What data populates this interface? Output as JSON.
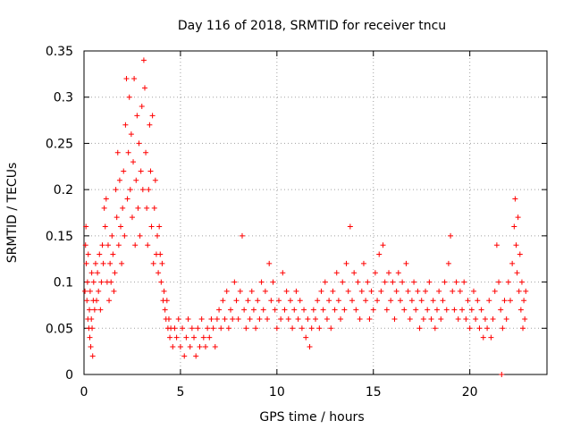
{
  "chart_data": {
    "type": "scatter",
    "title": "Day 116 of 2018, SRMTID for receiver tncu",
    "xlabel": "GPS time / hours",
    "ylabel": "SRMTID / TECUs",
    "xlim": [
      0,
      24
    ],
    "ylim": [
      0,
      0.35
    ],
    "x_ticks": [
      "0",
      "5",
      "10",
      "15",
      "20"
    ],
    "y_ticks": [
      "0",
      "0.05",
      "0.1",
      "0.15",
      "0.2",
      "0.25",
      "0.3",
      "0.35"
    ],
    "grid": true,
    "marker": "+",
    "marker_color": "#ff0000",
    "series": [
      {
        "points": [
          [
            0.05,
            0.09
          ],
          [
            0.08,
            0.14
          ],
          [
            0.1,
            0.16
          ],
          [
            0.12,
            0.12
          ],
          [
            0.15,
            0.08
          ],
          [
            0.18,
            0.1
          ],
          [
            0.2,
            0.06
          ],
          [
            0.22,
            0.13
          ],
          [
            0.25,
            0.05
          ],
          [
            0.28,
            0.07
          ],
          [
            0.3,
            0.04
          ],
          [
            0.32,
            0.09
          ],
          [
            0.35,
            0.03
          ],
          [
            0.38,
            0.06
          ],
          [
            0.4,
            0.11
          ],
          [
            0.42,
            0.05
          ],
          [
            0.45,
            0.02
          ],
          [
            0.48,
            0.08
          ],
          [
            0.5,
            0.1
          ],
          [
            0.55,
            0.07
          ],
          [
            0.6,
            0.12
          ],
          [
            0.65,
            0.08
          ],
          [
            0.7,
            0.11
          ],
          [
            0.75,
            0.09
          ],
          [
            0.8,
            0.13
          ],
          [
            0.85,
            0.07
          ],
          [
            0.9,
            0.1
          ],
          [
            0.95,
            0.14
          ],
          [
            1.0,
            0.12
          ],
          [
            1.05,
            0.18
          ],
          [
            1.1,
            0.16
          ],
          [
            1.15,
            0.19
          ],
          [
            1.2,
            0.1
          ],
          [
            1.25,
            0.14
          ],
          [
            1.3,
            0.08
          ],
          [
            1.35,
            0.12
          ],
          [
            1.4,
            0.1
          ],
          [
            1.45,
            0.15
          ],
          [
            1.5,
            0.13
          ],
          [
            1.55,
            0.09
          ],
          [
            1.6,
            0.11
          ],
          [
            1.65,
            0.2
          ],
          [
            1.7,
            0.17
          ],
          [
            1.75,
            0.24
          ],
          [
            1.8,
            0.14
          ],
          [
            1.85,
            0.21
          ],
          [
            1.9,
            0.16
          ],
          [
            1.95,
            0.12
          ],
          [
            2.0,
            0.18
          ],
          [
            2.05,
            0.22
          ],
          [
            2.1,
            0.15
          ],
          [
            2.15,
            0.27
          ],
          [
            2.2,
            0.32
          ],
          [
            2.25,
            0.19
          ],
          [
            2.3,
            0.24
          ],
          [
            2.35,
            0.3
          ],
          [
            2.4,
            0.2
          ],
          [
            2.45,
            0.26
          ],
          [
            2.5,
            0.17
          ],
          [
            2.55,
            0.23
          ],
          [
            2.6,
            0.32
          ],
          [
            2.65,
            0.14
          ],
          [
            2.7,
            0.21
          ],
          [
            2.75,
            0.28
          ],
          [
            2.8,
            0.18
          ],
          [
            2.85,
            0.25
          ],
          [
            2.9,
            0.15
          ],
          [
            2.95,
            0.22
          ],
          [
            3.0,
            0.29
          ],
          [
            3.05,
            0.2
          ],
          [
            3.1,
            0.34
          ],
          [
            3.15,
            0.31
          ],
          [
            3.2,
            0.24
          ],
          [
            3.25,
            0.18
          ],
          [
            3.3,
            0.14
          ],
          [
            3.35,
            0.2
          ],
          [
            3.4,
            0.27
          ],
          [
            3.45,
            0.22
          ],
          [
            3.5,
            0.16
          ],
          [
            3.55,
            0.28
          ],
          [
            3.6,
            0.12
          ],
          [
            3.65,
            0.18
          ],
          [
            3.7,
            0.21
          ],
          [
            3.75,
            0.13
          ],
          [
            3.8,
            0.15
          ],
          [
            3.85,
            0.11
          ],
          [
            3.9,
            0.16
          ],
          [
            3.95,
            0.13
          ],
          [
            4.0,
            0.1
          ],
          [
            4.05,
            0.12
          ],
          [
            4.1,
            0.08
          ],
          [
            4.15,
            0.09
          ],
          [
            4.2,
            0.07
          ],
          [
            4.25,
            0.06
          ],
          [
            4.3,
            0.08
          ],
          [
            4.35,
            0.05
          ],
          [
            4.4,
            0.06
          ],
          [
            4.45,
            0.04
          ],
          [
            4.5,
            0.05
          ],
          [
            4.6,
            0.03
          ],
          [
            4.7,
            0.05
          ],
          [
            4.8,
            0.04
          ],
          [
            4.9,
            0.06
          ],
          [
            5.0,
            0.03
          ],
          [
            5.1,
            0.05
          ],
          [
            5.2,
            0.02
          ],
          [
            5.3,
            0.04
          ],
          [
            5.4,
            0.06
          ],
          [
            5.5,
            0.03
          ],
          [
            5.6,
            0.05
          ],
          [
            5.7,
            0.04
          ],
          [
            5.8,
            0.02
          ],
          [
            5.9,
            0.05
          ],
          [
            6.0,
            0.03
          ],
          [
            6.1,
            0.06
          ],
          [
            6.2,
            0.04
          ],
          [
            6.3,
            0.03
          ],
          [
            6.4,
            0.05
          ],
          [
            6.5,
            0.04
          ],
          [
            6.6,
            0.06
          ],
          [
            6.7,
            0.05
          ],
          [
            6.8,
            0.03
          ],
          [
            6.9,
            0.06
          ],
          [
            7.0,
            0.07
          ],
          [
            7.1,
            0.05
          ],
          [
            7.2,
            0.08
          ],
          [
            7.3,
            0.06
          ],
          [
            7.4,
            0.09
          ],
          [
            7.5,
            0.05
          ],
          [
            7.6,
            0.07
          ],
          [
            7.7,
            0.06
          ],
          [
            7.8,
            0.1
          ],
          [
            7.9,
            0.08
          ],
          [
            8.0,
            0.06
          ],
          [
            8.1,
            0.09
          ],
          [
            8.2,
            0.15
          ],
          [
            8.3,
            0.07
          ],
          [
            8.4,
            0.05
          ],
          [
            8.5,
            0.08
          ],
          [
            8.6,
            0.06
          ],
          [
            8.7,
            0.09
          ],
          [
            8.8,
            0.07
          ],
          [
            8.9,
            0.05
          ],
          [
            9.0,
            0.08
          ],
          [
            9.1,
            0.06
          ],
          [
            9.2,
            0.1
          ],
          [
            9.3,
            0.07
          ],
          [
            9.4,
            0.09
          ],
          [
            9.5,
            0.06
          ],
          [
            9.6,
            0.12
          ],
          [
            9.7,
            0.08
          ],
          [
            9.8,
            0.1
          ],
          [
            9.9,
            0.07
          ],
          [
            10.0,
            0.05
          ],
          [
            10.1,
            0.08
          ],
          [
            10.2,
            0.06
          ],
          [
            10.3,
            0.11
          ],
          [
            10.4,
            0.07
          ],
          [
            10.5,
            0.09
          ],
          [
            10.6,
            0.06
          ],
          [
            10.7,
            0.08
          ],
          [
            10.8,
            0.05
          ],
          [
            10.9,
            0.07
          ],
          [
            11.0,
            0.09
          ],
          [
            11.1,
            0.06
          ],
          [
            11.2,
            0.08
          ],
          [
            11.3,
            0.05
          ],
          [
            11.4,
            0.07
          ],
          [
            11.5,
            0.04
          ],
          [
            11.6,
            0.06
          ],
          [
            11.7,
            0.03
          ],
          [
            11.8,
            0.05
          ],
          [
            11.9,
            0.07
          ],
          [
            12.0,
            0.06
          ],
          [
            12.1,
            0.08
          ],
          [
            12.2,
            0.05
          ],
          [
            12.3,
            0.09
          ],
          [
            12.4,
            0.07
          ],
          [
            12.5,
            0.1
          ],
          [
            12.6,
            0.06
          ],
          [
            12.7,
            0.08
          ],
          [
            12.8,
            0.05
          ],
          [
            12.9,
            0.09
          ],
          [
            13.0,
            0.07
          ],
          [
            13.1,
            0.11
          ],
          [
            13.2,
            0.08
          ],
          [
            13.3,
            0.06
          ],
          [
            13.4,
            0.1
          ],
          [
            13.5,
            0.07
          ],
          [
            13.6,
            0.12
          ],
          [
            13.7,
            0.09
          ],
          [
            13.8,
            0.16
          ],
          [
            13.9,
            0.08
          ],
          [
            14.0,
            0.11
          ],
          [
            14.1,
            0.07
          ],
          [
            14.2,
            0.1
          ],
          [
            14.3,
            0.06
          ],
          [
            14.4,
            0.09
          ],
          [
            14.5,
            0.12
          ],
          [
            14.6,
            0.08
          ],
          [
            14.7,
            0.1
          ],
          [
            14.8,
            0.06
          ],
          [
            14.9,
            0.09
          ],
          [
            15.0,
            0.07
          ],
          [
            15.1,
            0.11
          ],
          [
            15.2,
            0.08
          ],
          [
            15.3,
            0.13
          ],
          [
            15.4,
            0.09
          ],
          [
            15.5,
            0.14
          ],
          [
            15.6,
            0.1
          ],
          [
            15.7,
            0.07
          ],
          [
            15.8,
            0.11
          ],
          [
            15.9,
            0.08
          ],
          [
            16.0,
            0.1
          ],
          [
            16.1,
            0.06
          ],
          [
            16.2,
            0.09
          ],
          [
            16.3,
            0.11
          ],
          [
            16.4,
            0.08
          ],
          [
            16.5,
            0.1
          ],
          [
            16.6,
            0.07
          ],
          [
            16.7,
            0.12
          ],
          [
            16.8,
            0.09
          ],
          [
            16.9,
            0.06
          ],
          [
            17.0,
            0.08
          ],
          [
            17.1,
            0.1
          ],
          [
            17.2,
            0.07
          ],
          [
            17.3,
            0.09
          ],
          [
            17.4,
            0.05
          ],
          [
            17.5,
            0.08
          ],
          [
            17.6,
            0.06
          ],
          [
            17.7,
            0.09
          ],
          [
            17.8,
            0.07
          ],
          [
            17.9,
            0.1
          ],
          [
            18.0,
            0.06
          ],
          [
            18.1,
            0.08
          ],
          [
            18.2,
            0.05
          ],
          [
            18.3,
            0.07
          ],
          [
            18.4,
            0.09
          ],
          [
            18.5,
            0.06
          ],
          [
            18.6,
            0.08
          ],
          [
            18.7,
            0.1
          ],
          [
            18.8,
            0.07
          ],
          [
            18.9,
            0.12
          ],
          [
            19.0,
            0.15
          ],
          [
            19.1,
            0.09
          ],
          [
            19.2,
            0.07
          ],
          [
            19.3,
            0.1
          ],
          [
            19.4,
            0.06
          ],
          [
            19.5,
            0.09
          ],
          [
            19.6,
            0.07
          ],
          [
            19.7,
            0.1
          ],
          [
            19.8,
            0.06
          ],
          [
            19.9,
            0.08
          ],
          [
            20.0,
            0.05
          ],
          [
            20.1,
            0.07
          ],
          [
            20.2,
            0.09
          ],
          [
            20.3,
            0.06
          ],
          [
            20.4,
            0.08
          ],
          [
            20.5,
            0.05
          ],
          [
            20.6,
            0.07
          ],
          [
            20.7,
            0.04
          ],
          [
            20.8,
            0.06
          ],
          [
            20.9,
            0.05
          ],
          [
            21.0,
            0.08
          ],
          [
            21.1,
            0.04
          ],
          [
            21.2,
            0.06
          ],
          [
            21.3,
            0.09
          ],
          [
            21.4,
            0.14
          ],
          [
            21.5,
            0.1
          ],
          [
            21.6,
            0.07
          ],
          [
            21.65,
            0.0
          ],
          [
            21.7,
            0.05
          ],
          [
            21.8,
            0.08
          ],
          [
            21.9,
            0.06
          ],
          [
            22.0,
            0.1
          ],
          [
            22.1,
            0.08
          ],
          [
            22.2,
            0.12
          ],
          [
            22.3,
            0.16
          ],
          [
            22.35,
            0.19
          ],
          [
            22.4,
            0.14
          ],
          [
            22.45,
            0.11
          ],
          [
            22.5,
            0.17
          ],
          [
            22.55,
            0.09
          ],
          [
            22.6,
            0.13
          ],
          [
            22.65,
            0.07
          ],
          [
            22.7,
            0.1
          ],
          [
            22.75,
            0.05
          ],
          [
            22.8,
            0.08
          ],
          [
            22.85,
            0.06
          ],
          [
            22.9,
            0.09
          ]
        ]
      }
    ]
  }
}
